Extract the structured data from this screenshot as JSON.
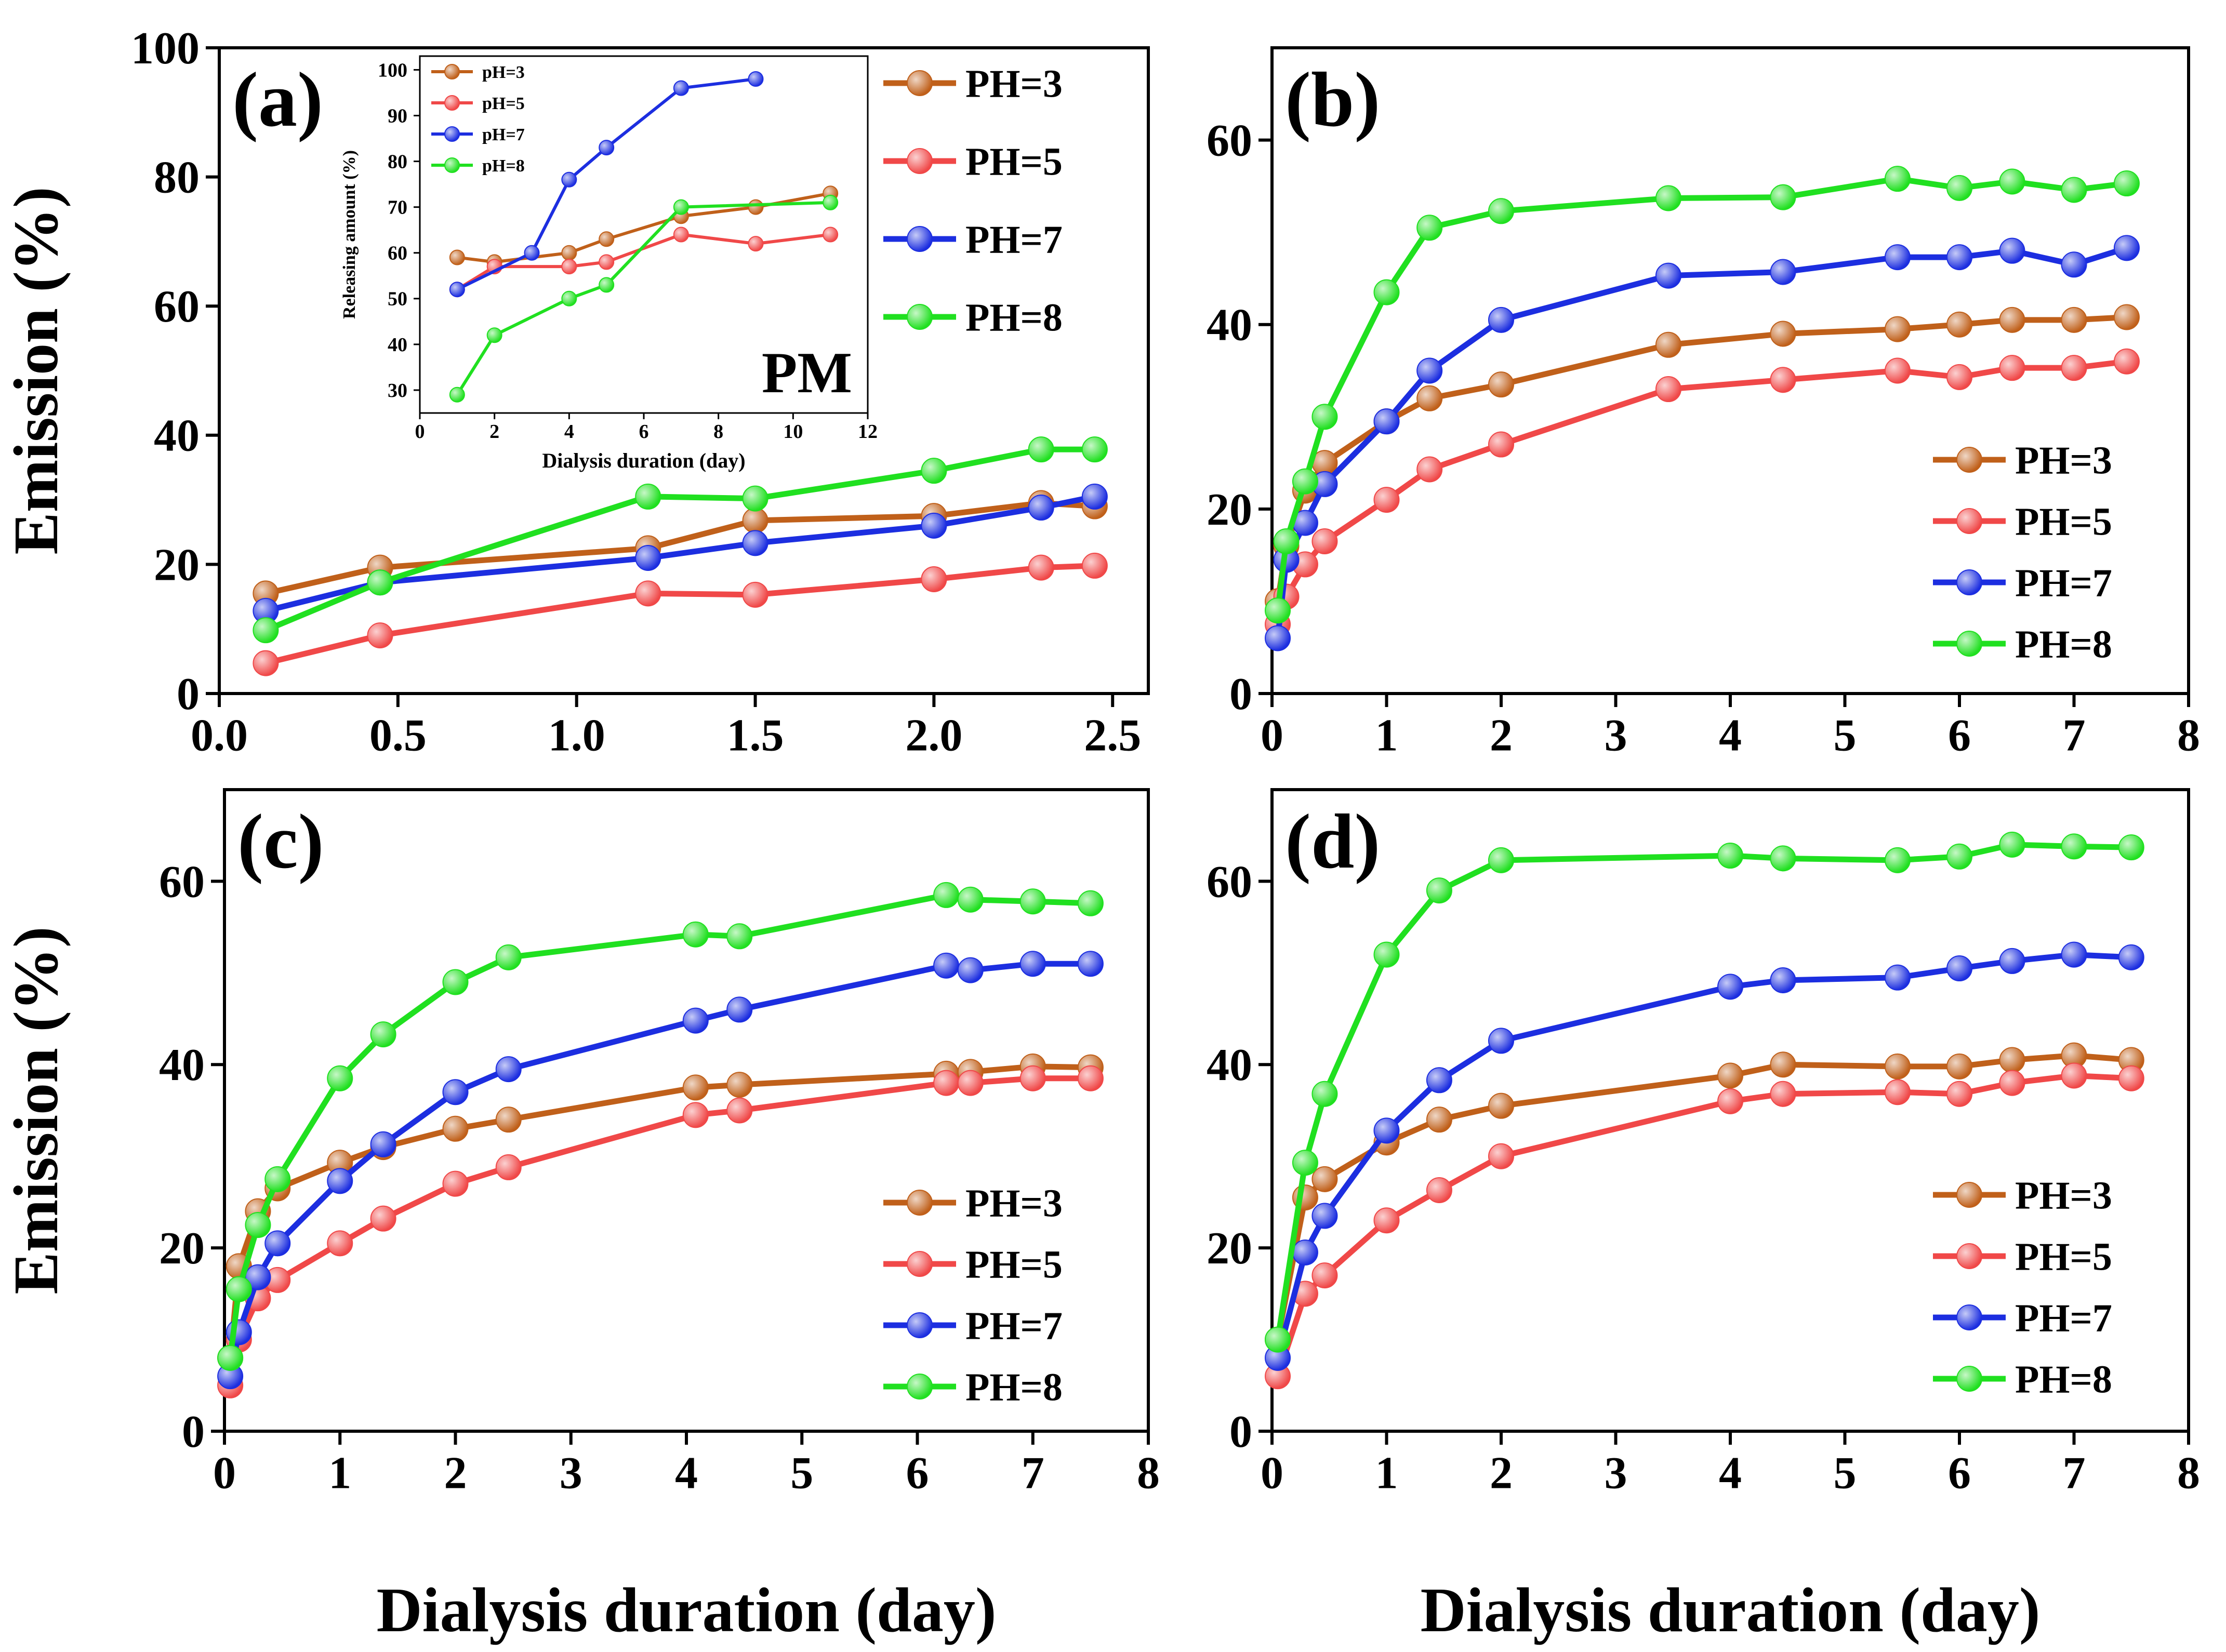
{
  "colors": {
    "PH=3": "#c0601a",
    "PH=5": "#f04848",
    "PH=7": "#1c2ee0",
    "PH=8": "#20e020",
    "axis": "#000000"
  },
  "chart_data": [
    {
      "type": "line",
      "panel": "a",
      "panel_label": "(a)",
      "title": "",
      "xlabel": "",
      "ylabel": "Emission (%)",
      "xlim": [
        0,
        2.6
      ],
      "ylim": [
        0,
        100
      ],
      "xticks": [
        0.0,
        0.5,
        1.0,
        1.5,
        2.0,
        2.5
      ],
      "xtick_labels": [
        "0.0",
        "0.5",
        "1.0",
        "1.5",
        "2.0",
        "2.5"
      ],
      "yticks": [
        0,
        20,
        40,
        60,
        80,
        100
      ],
      "ytick_labels": [
        "0",
        "20",
        "40",
        "60",
        "80",
        "100"
      ],
      "legend_position": "top-right",
      "series": [
        {
          "name": "PH=3",
          "x": [
            0.13,
            0.45,
            1.2,
            1.5,
            2.0,
            2.3,
            2.45
          ],
          "values": [
            15.5,
            19.5,
            22.5,
            26.8,
            27.5,
            29.5,
            29.0
          ]
        },
        {
          "name": "PH=5",
          "x": [
            0.13,
            0.45,
            1.2,
            1.5,
            2.0,
            2.3,
            2.45
          ],
          "values": [
            4.7,
            9.0,
            15.5,
            15.3,
            17.7,
            19.5,
            19.8
          ]
        },
        {
          "name": "PH=7",
          "x": [
            0.13,
            0.45,
            1.2,
            1.5,
            2.0,
            2.3,
            2.45
          ],
          "values": [
            12.8,
            17.2,
            21.0,
            23.3,
            26.0,
            28.8,
            30.5
          ]
        },
        {
          "name": "PH=8",
          "x": [
            0.13,
            0.45,
            1.2,
            1.5,
            2.0,
            2.3,
            2.45
          ],
          "values": [
            9.8,
            17.2,
            30.5,
            30.2,
            34.5,
            37.8,
            37.8
          ]
        }
      ]
    },
    {
      "type": "line",
      "panel": "a-inset",
      "panel_label": "PM",
      "title": "",
      "xlabel": "Dialysis duration (day)",
      "ylabel": "Releasing amount (%)",
      "xlim": [
        0,
        12
      ],
      "ylim": [
        25,
        103
      ],
      "xticks": [
        0,
        2,
        4,
        6,
        8,
        10,
        12
      ],
      "xtick_labels": [
        "0",
        "2",
        "4",
        "6",
        "8",
        "10",
        "12"
      ],
      "yticks": [
        30,
        40,
        50,
        60,
        70,
        80,
        90,
        100
      ],
      "ytick_labels": [
        "30",
        "40",
        "50",
        "60",
        "70",
        "80",
        "90",
        "100"
      ],
      "legend_position": "top-left",
      "series": [
        {
          "name": "pH=3",
          "color_key": "PH=3",
          "x": [
            1,
            2,
            4,
            5,
            7,
            9,
            11
          ],
          "values": [
            59,
            58,
            60,
            63,
            68,
            70,
            73
          ]
        },
        {
          "name": "pH=5",
          "color_key": "PH=5",
          "x": [
            1,
            2,
            4,
            5,
            7,
            9,
            11
          ],
          "values": [
            52,
            57,
            57,
            58,
            64,
            62,
            64
          ]
        },
        {
          "name": "pH=7",
          "color_key": "PH=7",
          "x": [
            1,
            3,
            4,
            5,
            7,
            9
          ],
          "values": [
            52,
            60,
            76,
            83,
            96,
            98
          ]
        },
        {
          "name": "pH=8",
          "color_key": "PH=8",
          "x": [
            1,
            2,
            4,
            5,
            7,
            11
          ],
          "values": [
            29,
            42,
            50,
            53,
            70,
            71
          ]
        }
      ]
    },
    {
      "type": "line",
      "panel": "b",
      "panel_label": "(b)",
      "title": "",
      "xlabel": "",
      "ylabel": "",
      "xlim": [
        0,
        8
      ],
      "ylim": [
        0,
        70
      ],
      "xticks": [
        0,
        1,
        2,
        3,
        4,
        5,
        6,
        7,
        8
      ],
      "xtick_labels": [
        "0",
        "1",
        "2",
        "3",
        "4",
        "5",
        "6",
        "7",
        "8"
      ],
      "yticks": [
        0,
        20,
        40,
        60
      ],
      "ytick_labels": [
        "0",
        "20",
        "40",
        "60"
      ],
      "legend_position": "bottom-right",
      "series": [
        {
          "name": "PH=3",
          "x": [
            0.05,
            0.125,
            0.29,
            0.46,
            1,
            1.375,
            2,
            3.46,
            4.46,
            5.46,
            6,
            6.46,
            7,
            7.46
          ],
          "values": [
            10.0,
            16.0,
            22.0,
            25.0,
            29.5,
            32.0,
            33.5,
            37.8,
            39.0,
            39.5,
            40.0,
            40.5,
            40.5,
            40.8
          ]
        },
        {
          "name": "PH=5",
          "x": [
            0.05,
            0.125,
            0.29,
            0.46,
            1,
            1.375,
            2,
            3.46,
            4.46,
            5.46,
            6,
            6.46,
            7,
            7.46
          ],
          "values": [
            7.5,
            10.5,
            14.0,
            16.5,
            21.0,
            24.3,
            27.0,
            33.0,
            34.0,
            35.0,
            34.3,
            35.3,
            35.3,
            36.0
          ]
        },
        {
          "name": "PH=7",
          "x": [
            0.05,
            0.125,
            0.29,
            0.46,
            1,
            1.375,
            2,
            3.46,
            4.46,
            5.46,
            6,
            6.46,
            7,
            7.46
          ],
          "values": [
            6.0,
            14.5,
            18.5,
            22.7,
            29.5,
            35.0,
            40.5,
            45.3,
            45.7,
            47.3,
            47.3,
            48.0,
            46.5,
            48.3
          ]
        },
        {
          "name": "PH=8",
          "x": [
            0.05,
            0.125,
            0.29,
            0.46,
            1,
            1.375,
            2,
            3.46,
            4.46,
            5.46,
            6,
            6.46,
            7,
            7.46
          ],
          "values": [
            9.0,
            16.5,
            23.0,
            30.0,
            43.5,
            50.5,
            52.3,
            53.7,
            53.8,
            55.8,
            54.8,
            55.5,
            54.6,
            55.3
          ]
        }
      ]
    },
    {
      "type": "line",
      "panel": "c",
      "panel_label": "(c)",
      "title": "",
      "xlabel": "Dialysis duration (day)",
      "ylabel": "Emission (%)",
      "xlim": [
        0,
        8
      ],
      "ylim": [
        0,
        70
      ],
      "xticks": [
        0,
        1,
        2,
        3,
        4,
        5,
        6,
        7,
        8
      ],
      "xtick_labels": [
        "0",
        "1",
        "2",
        "3",
        "4",
        "5",
        "6",
        "7",
        "8"
      ],
      "yticks": [
        0,
        20,
        40,
        60
      ],
      "ytick_labels": [
        "0",
        "20",
        "40",
        "60"
      ],
      "legend_position": "bottom-right",
      "series": [
        {
          "name": "PH=3",
          "x": [
            0.05,
            0.125,
            0.29,
            0.46,
            1,
            1.375,
            2,
            2.46,
            4.08,
            4.46,
            6.25,
            6.46,
            7,
            7.5
          ],
          "values": [
            8.0,
            18.0,
            24.0,
            26.5,
            29.3,
            31.0,
            33.0,
            34.0,
            37.5,
            37.8,
            39.0,
            39.2,
            39.8,
            39.7
          ]
        },
        {
          "name": "PH=5",
          "x": [
            0.05,
            0.125,
            0.29,
            0.46,
            1,
            1.375,
            2,
            2.46,
            4.08,
            4.46,
            6.25,
            6.46,
            7,
            7.5
          ],
          "values": [
            5.0,
            10.0,
            14.5,
            16.5,
            20.5,
            23.2,
            27.0,
            28.8,
            34.5,
            35.0,
            38.0,
            38.0,
            38.5,
            38.5
          ]
        },
        {
          "name": "PH=7",
          "x": [
            0.05,
            0.125,
            0.29,
            0.46,
            1,
            1.375,
            2,
            2.46,
            4.08,
            4.46,
            6.25,
            6.46,
            7,
            7.5
          ],
          "values": [
            6.0,
            10.8,
            16.8,
            20.5,
            27.3,
            31.3,
            37.0,
            39.5,
            44.8,
            46.0,
            50.8,
            50.3,
            51.0,
            51.0
          ]
        },
        {
          "name": "PH=8",
          "x": [
            0.05,
            0.125,
            0.29,
            0.46,
            1,
            1.375,
            2,
            2.46,
            4.08,
            4.46,
            6.25,
            6.46,
            7,
            7.5
          ],
          "values": [
            8.0,
            15.5,
            22.5,
            27.5,
            38.5,
            43.3,
            49.0,
            51.7,
            54.2,
            54.0,
            58.5,
            58.0,
            57.8,
            57.6
          ]
        }
      ]
    },
    {
      "type": "line",
      "panel": "d",
      "panel_label": "(d)",
      "title": "",
      "xlabel": "Dialysis duration (day)",
      "ylabel": "",
      "xlim": [
        0,
        8
      ],
      "ylim": [
        0,
        70
      ],
      "xticks": [
        0,
        1,
        2,
        3,
        4,
        5,
        6,
        7,
        8
      ],
      "xtick_labels": [
        "0",
        "1",
        "2",
        "3",
        "4",
        "5",
        "6",
        "7",
        "8"
      ],
      "yticks": [
        0,
        20,
        40,
        60
      ],
      "ytick_labels": [
        "0",
        "20",
        "40",
        "60"
      ],
      "legend_position": "bottom-right",
      "series": [
        {
          "name": "PH=3",
          "x": [
            0.05,
            0.29,
            0.46,
            1,
            1.46,
            2,
            4,
            4.46,
            5.46,
            6,
            6.46,
            7,
            7.5
          ],
          "values": [
            10.0,
            25.5,
            27.5,
            31.5,
            34.0,
            35.5,
            38.8,
            40.0,
            39.8,
            39.8,
            40.5,
            41.0,
            40.5
          ]
        },
        {
          "name": "PH=5",
          "x": [
            0.05,
            0.29,
            0.46,
            1,
            1.46,
            2,
            4,
            4.46,
            5.46,
            6,
            6.46,
            7,
            7.5
          ],
          "values": [
            6.0,
            15.0,
            17.0,
            23.0,
            26.3,
            30.0,
            36.0,
            36.8,
            37.0,
            36.8,
            38.0,
            38.8,
            38.5
          ]
        },
        {
          "name": "PH=7",
          "x": [
            0.05,
            0.29,
            0.46,
            1,
            1.46,
            2,
            4,
            4.46,
            5.46,
            6,
            6.46,
            7,
            7.5
          ],
          "values": [
            8.0,
            19.5,
            23.5,
            32.8,
            38.3,
            42.6,
            48.5,
            49.2,
            49.5,
            50.5,
            51.3,
            52.0,
            51.7
          ]
        },
        {
          "name": "PH=8",
          "x": [
            0.05,
            0.29,
            0.46,
            1,
            1.46,
            2,
            4,
            4.46,
            5.46,
            6,
            6.46,
            7,
            7.5
          ],
          "values": [
            10.0,
            29.3,
            36.8,
            52.0,
            59.0,
            62.3,
            62.8,
            62.5,
            62.3,
            62.7,
            64.0,
            63.8,
            63.7
          ]
        }
      ]
    }
  ]
}
